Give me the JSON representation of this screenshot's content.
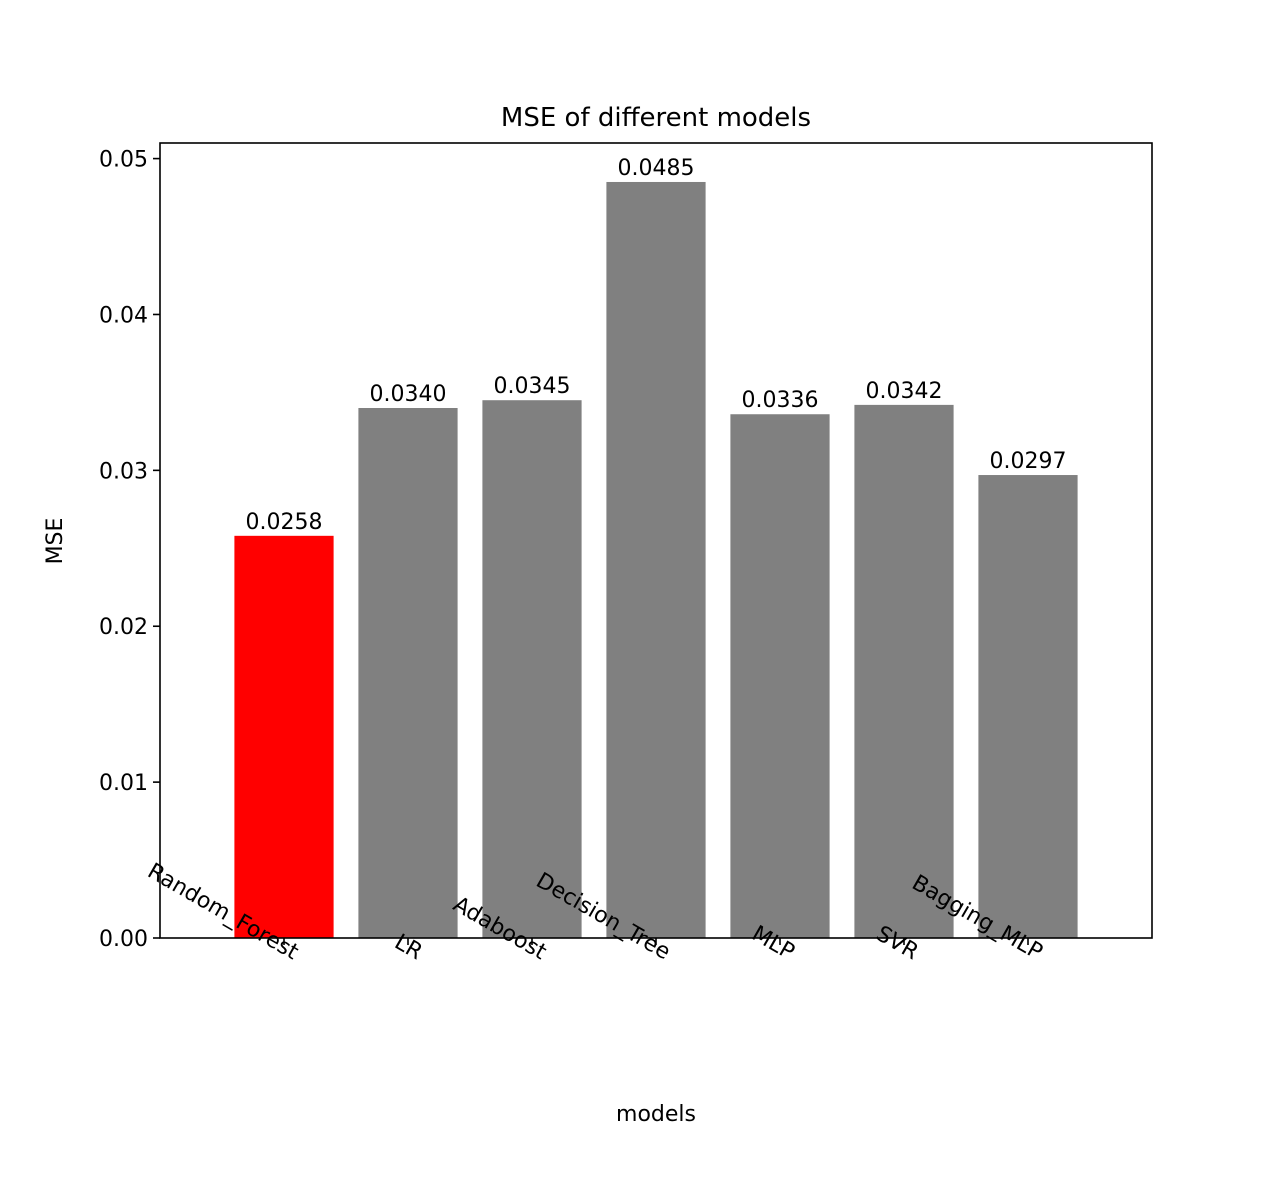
{
  "chart_data": {
    "type": "bar",
    "title": "MSE of different models",
    "xlabel": "models",
    "ylabel": "MSE",
    "categories": [
      "Random_Forest",
      "LR",
      "Adaboost",
      "Decision_Tree",
      "MLP",
      "SVR",
      "Bagging_MLP"
    ],
    "values": [
      0.0258,
      0.034,
      0.0345,
      0.0485,
      0.0336,
      0.0342,
      0.0297
    ],
    "value_labels": [
      "0.0258",
      "0.0340",
      "0.0345",
      "0.0485",
      "0.0336",
      "0.0342",
      "0.0297"
    ],
    "colors": [
      "#ff0000",
      "#808080",
      "#808080",
      "#808080",
      "#808080",
      "#808080",
      "#808080"
    ],
    "ylim": [
      0,
      0.051
    ],
    "yticks": [
      0,
      0.01,
      0.02,
      0.03,
      0.04,
      0.05
    ],
    "ytick_labels": [
      "0.00",
      "0.01",
      "0.02",
      "0.03",
      "0.04",
      "0.05"
    ],
    "xtick_rotation_deg": 30,
    "grid": false,
    "legend": false
  }
}
